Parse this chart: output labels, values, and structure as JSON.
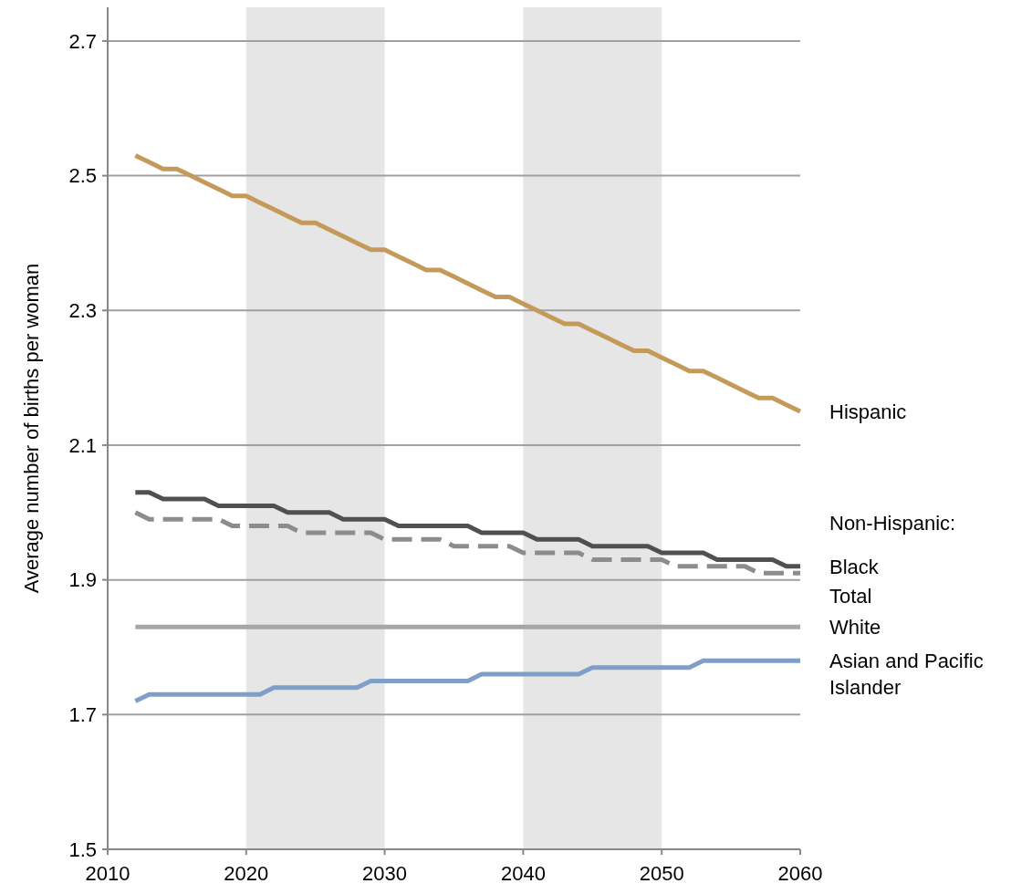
{
  "chart_data": {
    "type": "line",
    "ylabel": "Average number  of births per woman",
    "x": [
      2012,
      2013,
      2014,
      2015,
      2016,
      2017,
      2018,
      2019,
      2020,
      2021,
      2022,
      2023,
      2024,
      2025,
      2026,
      2027,
      2028,
      2029,
      2030,
      2031,
      2032,
      2033,
      2034,
      2035,
      2036,
      2037,
      2038,
      2039,
      2040,
      2041,
      2042,
      2043,
      2044,
      2045,
      2046,
      2047,
      2048,
      2049,
      2050,
      2051,
      2052,
      2053,
      2054,
      2055,
      2056,
      2057,
      2058,
      2059,
      2060
    ],
    "series": [
      {
        "name": "Hispanic",
        "color": "#c49a5a",
        "values": [
          2.53,
          2.52,
          2.51,
          2.51,
          2.5,
          2.49,
          2.48,
          2.47,
          2.47,
          2.46,
          2.45,
          2.44,
          2.43,
          2.43,
          2.42,
          2.41,
          2.4,
          2.39,
          2.39,
          2.38,
          2.37,
          2.36,
          2.36,
          2.35,
          2.34,
          2.33,
          2.32,
          2.32,
          2.31,
          2.3,
          2.29,
          2.28,
          2.28,
          2.27,
          2.26,
          2.25,
          2.24,
          2.24,
          2.23,
          2.22,
          2.21,
          2.21,
          2.2,
          2.19,
          2.18,
          2.17,
          2.17,
          2.16,
          2.15
        ]
      },
      {
        "name": "Black",
        "color": "#505050",
        "values": [
          2.03,
          2.03,
          2.02,
          2.02,
          2.02,
          2.02,
          2.01,
          2.01,
          2.01,
          2.01,
          2.01,
          2.0,
          2.0,
          2.0,
          2.0,
          1.99,
          1.99,
          1.99,
          1.99,
          1.98,
          1.98,
          1.98,
          1.98,
          1.98,
          1.98,
          1.97,
          1.97,
          1.97,
          1.97,
          1.96,
          1.96,
          1.96,
          1.96,
          1.95,
          1.95,
          1.95,
          1.95,
          1.95,
          1.94,
          1.94,
          1.94,
          1.94,
          1.93,
          1.93,
          1.93,
          1.93,
          1.93,
          1.92,
          1.92
        ]
      },
      {
        "name": "Total",
        "color": "#8c8c8c",
        "line_style": "dashed",
        "values": [
          2.0,
          1.99,
          1.99,
          1.99,
          1.99,
          1.99,
          1.99,
          1.98,
          1.98,
          1.98,
          1.98,
          1.98,
          1.97,
          1.97,
          1.97,
          1.97,
          1.97,
          1.97,
          1.96,
          1.96,
          1.96,
          1.96,
          1.96,
          1.95,
          1.95,
          1.95,
          1.95,
          1.95,
          1.94,
          1.94,
          1.94,
          1.94,
          1.94,
          1.93,
          1.93,
          1.93,
          1.93,
          1.93,
          1.93,
          1.92,
          1.92,
          1.92,
          1.92,
          1.92,
          1.92,
          1.91,
          1.91,
          1.91,
          1.91
        ]
      },
      {
        "name": "White",
        "color": "#a6a6a6",
        "values": [
          1.83,
          1.83,
          1.83,
          1.83,
          1.83,
          1.83,
          1.83,
          1.83,
          1.83,
          1.83,
          1.83,
          1.83,
          1.83,
          1.83,
          1.83,
          1.83,
          1.83,
          1.83,
          1.83,
          1.83,
          1.83,
          1.83,
          1.83,
          1.83,
          1.83,
          1.83,
          1.83,
          1.83,
          1.83,
          1.83,
          1.83,
          1.83,
          1.83,
          1.83,
          1.83,
          1.83,
          1.83,
          1.83,
          1.83,
          1.83,
          1.83,
          1.83,
          1.83,
          1.83,
          1.83,
          1.83,
          1.83,
          1.83,
          1.83
        ]
      },
      {
        "name": "Asian and Pacific Islander",
        "color": "#7f9fc8",
        "values": [
          1.72,
          1.73,
          1.73,
          1.73,
          1.73,
          1.73,
          1.73,
          1.73,
          1.73,
          1.73,
          1.74,
          1.74,
          1.74,
          1.74,
          1.74,
          1.74,
          1.74,
          1.75,
          1.75,
          1.75,
          1.75,
          1.75,
          1.75,
          1.75,
          1.75,
          1.76,
          1.76,
          1.76,
          1.76,
          1.76,
          1.76,
          1.76,
          1.76,
          1.77,
          1.77,
          1.77,
          1.77,
          1.77,
          1.77,
          1.77,
          1.77,
          1.78,
          1.78,
          1.78,
          1.78,
          1.78,
          1.78,
          1.78,
          1.78
        ]
      }
    ],
    "annotations": [
      "Non-Hispanic:"
    ],
    "bands": [
      {
        "axis": "x",
        "from": 2020,
        "to": 2030,
        "color": "#e6e6e6"
      },
      {
        "axis": "x",
        "from": 2040,
        "to": 2050,
        "color": "#e6e6e6"
      }
    ],
    "xlim": [
      2010,
      2060
    ],
    "xticks": [
      2010,
      2020,
      2030,
      2040,
      2050,
      2060
    ],
    "ylim": [
      1.5,
      2.75
    ],
    "yticks": [
      1.5,
      1.7,
      1.9,
      2.1,
      2.3,
      2.5,
      2.7
    ],
    "grid": "y"
  }
}
